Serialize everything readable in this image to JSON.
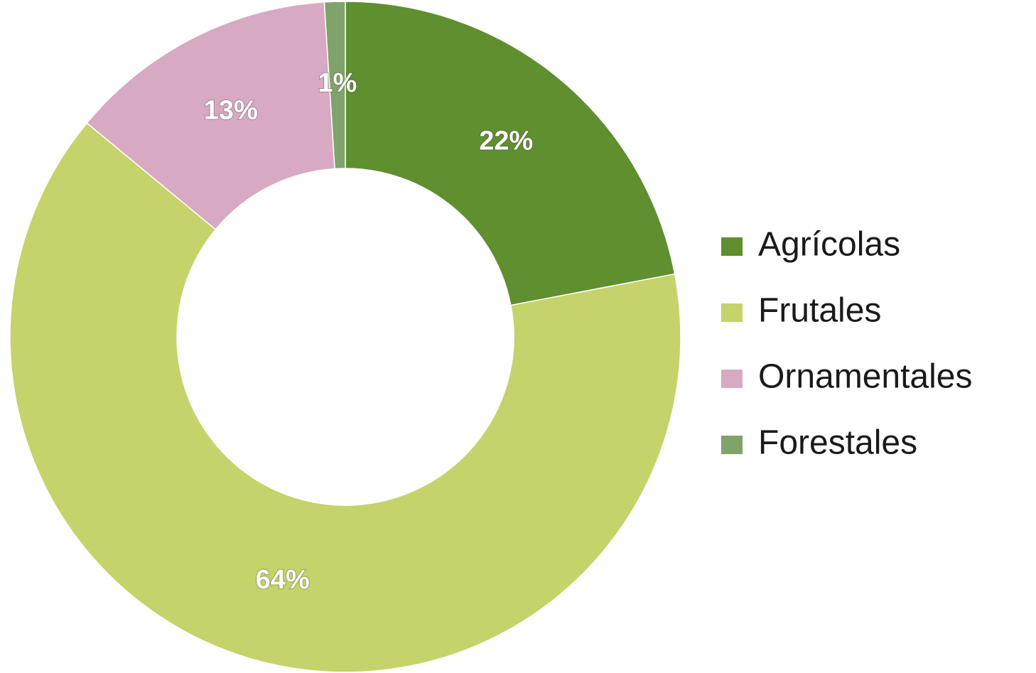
{
  "chart_data": {
    "type": "donut",
    "categories": [
      "Agrícolas",
      "Frutales",
      "Ornamentales",
      "Forestales"
    ],
    "values": [
      22,
      64,
      13,
      1
    ],
    "value_labels": [
      "22%",
      "64%",
      "13%",
      "1%"
    ],
    "colors": [
      "#5f8f2e",
      "#c5d36a",
      "#d7a9c2",
      "#7fa36a"
    ],
    "legend": "right"
  }
}
